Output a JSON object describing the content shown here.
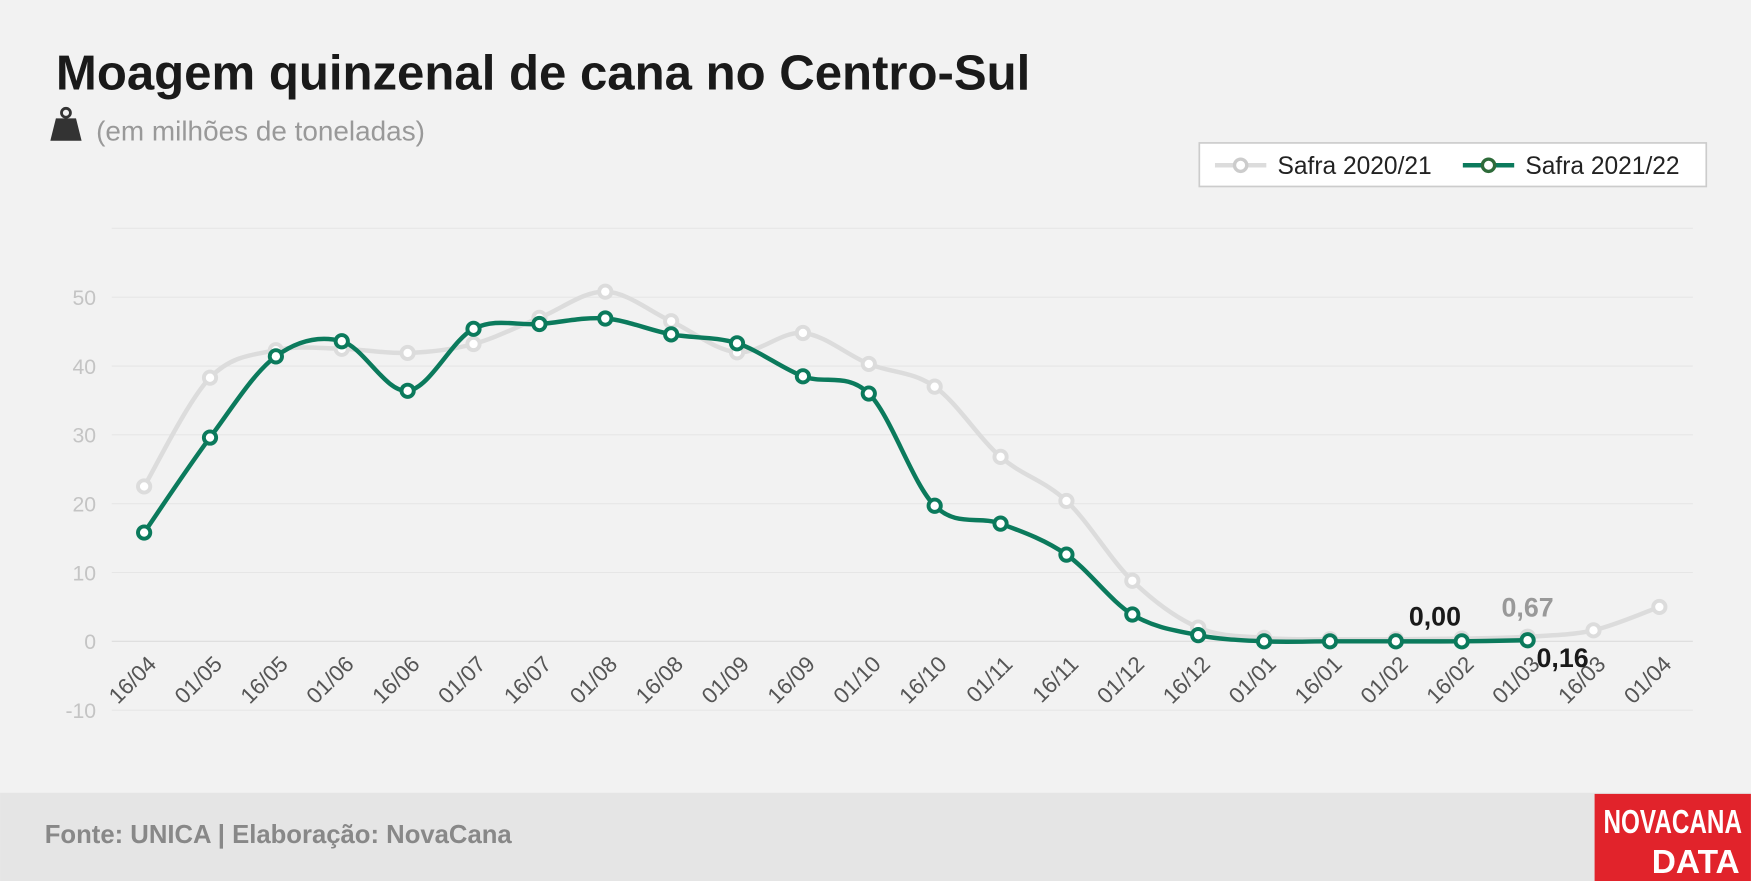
{
  "chart_data": {
    "type": "line",
    "title": "Moagem quinzenal de cana no Centro-Sul",
    "subtitle": "(em milhões de toneladas)",
    "categories": [
      "16/04",
      "01/05",
      "16/05",
      "01/06",
      "16/06",
      "01/07",
      "16/07",
      "01/08",
      "16/08",
      "01/09",
      "16/09",
      "01/10",
      "16/10",
      "01/11",
      "16/11",
      "01/12",
      "16/12",
      "01/01",
      "16/01",
      "01/02",
      "16/02",
      "01/03",
      "16/03",
      "01/04"
    ],
    "series": [
      {
        "name": "Safra 2020/21",
        "color": "#dcdcdc",
        "values": [
          22.5,
          38.3,
          42.3,
          42.5,
          41.9,
          43.2,
          47.0,
          50.8,
          46.5,
          42.0,
          44.8,
          40.3,
          37.0,
          26.8,
          20.4,
          8.8,
          2.0,
          0.5,
          0.3,
          0.3,
          0.4,
          0.67,
          1.6,
          5.0
        ],
        "value_labels": [
          null,
          null,
          null,
          null,
          null,
          null,
          null,
          null,
          null,
          null,
          null,
          null,
          null,
          null,
          null,
          null,
          null,
          null,
          null,
          null,
          null,
          "0,67",
          null,
          null
        ]
      },
      {
        "name": "Safra 2021/22",
        "color": "#0b7a5c",
        "values": [
          15.8,
          29.6,
          41.4,
          43.6,
          36.4,
          45.4,
          46.1,
          46.9,
          44.6,
          43.3,
          38.5,
          36.0,
          19.7,
          17.1,
          12.6,
          3.9,
          0.9,
          0.0,
          0.0,
          0.0,
          0.0,
          0.16,
          null,
          null
        ],
        "value_labels": [
          null,
          null,
          null,
          null,
          null,
          null,
          null,
          null,
          null,
          null,
          null,
          null,
          null,
          null,
          null,
          null,
          null,
          null,
          null,
          null,
          "0,00",
          "0,16",
          null,
          null
        ]
      }
    ],
    "ylim": [
      -10,
      60
    ],
    "yticks": [
      -10,
      0,
      10,
      20,
      30,
      40,
      50
    ],
    "grid": true,
    "legend": "top-right",
    "source": "Fonte: UNICA | Elaboração: NovaCana",
    "logo": [
      "NOVACANA",
      "DATA"
    ]
  }
}
